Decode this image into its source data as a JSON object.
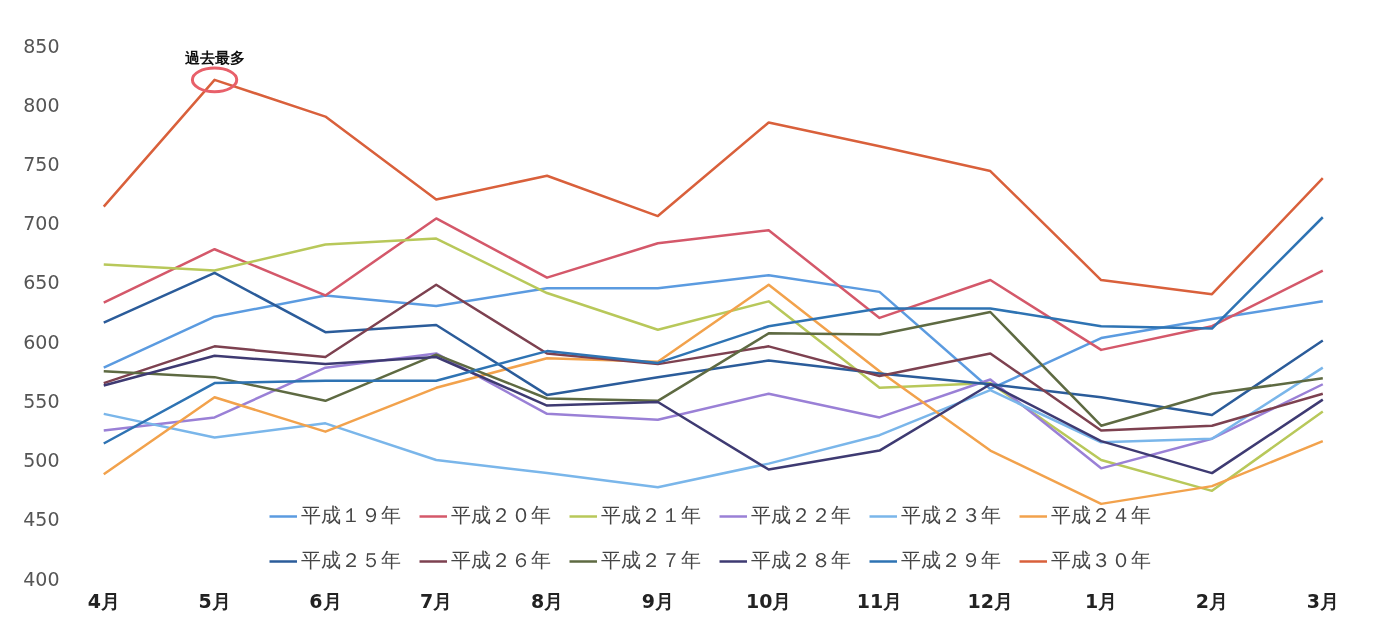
{
  "chart_data": {
    "type": "line",
    "categories": [
      "4月",
      "5月",
      "6月",
      "7月",
      "8月",
      "9月",
      "10月",
      "11月",
      "12月",
      "1月",
      "2月",
      "3月"
    ],
    "ylim": [
      400,
      850
    ],
    "yticks": [
      400,
      450,
      500,
      550,
      600,
      650,
      700,
      750,
      800,
      850
    ],
    "grid": false,
    "legend": "bottom",
    "marker": "none",
    "line_style": "solid",
    "annotations": [
      {
        "text": "過去最多",
        "x": "5月",
        "y": 821
      }
    ],
    "series": [
      {
        "name": "平成１９年",
        "color": "#5b9be0",
        "values": [
          578,
          621,
          639,
          630,
          645,
          645,
          656,
          642,
          560,
          603,
          619,
          634
        ]
      },
      {
        "name": "平成２０年",
        "color": "#d4586a",
        "values": [
          633,
          678,
          639,
          704,
          654,
          683,
          694,
          620,
          652,
          593,
          613,
          660
        ]
      },
      {
        "name": "平成２１年",
        "color": "#b8c85a",
        "values": [
          665,
          660,
          682,
          687,
          641,
          610,
          634,
          561,
          565,
          500,
          474,
          541
        ]
      },
      {
        "name": "平成２２年",
        "color": "#9a80d6",
        "values": [
          525,
          536,
          578,
          590,
          539,
          534,
          556,
          536,
          568,
          493,
          518,
          564
        ]
      },
      {
        "name": "平成２３年",
        "color": "#7ab6ea",
        "values": [
          539,
          519,
          531,
          500,
          489,
          477,
          497,
          521,
          559,
          515,
          518,
          578
        ]
      },
      {
        "name": "平成２４年",
        "color": "#f2a24c",
        "values": [
          488,
          553,
          524,
          561,
          586,
          583,
          648,
          575,
          508,
          463,
          478,
          516
        ]
      },
      {
        "name": "平成２５年",
        "color": "#2b5c9a",
        "values": [
          616,
          658,
          608,
          614,
          555,
          570,
          584,
          573,
          564,
          553,
          538,
          601
        ]
      },
      {
        "name": "平成２６年",
        "color": "#7d4150",
        "values": [
          565,
          596,
          587,
          648,
          590,
          581,
          596,
          571,
          590,
          525,
          529,
          556
        ]
      },
      {
        "name": "平成２７年",
        "color": "#5e6a42",
        "values": [
          575,
          570,
          550,
          589,
          552,
          550,
          607,
          606,
          625,
          529,
          556,
          569
        ]
      },
      {
        "name": "平成２８年",
        "color": "#3e3a72",
        "values": [
          563,
          588,
          581,
          587,
          546,
          549,
          492,
          508,
          564,
          516,
          489,
          551
        ]
      },
      {
        "name": "平成２９年",
        "color": "#2e73b3",
        "values": [
          514,
          565,
          567,
          567,
          592,
          582,
          613,
          628,
          628,
          613,
          611,
          705
        ]
      },
      {
        "name": "平成３０年",
        "color": "#d9603b",
        "values": [
          714,
          821,
          790,
          720,
          740,
          706,
          785,
          765,
          744,
          652,
          640,
          738
        ]
      }
    ]
  }
}
